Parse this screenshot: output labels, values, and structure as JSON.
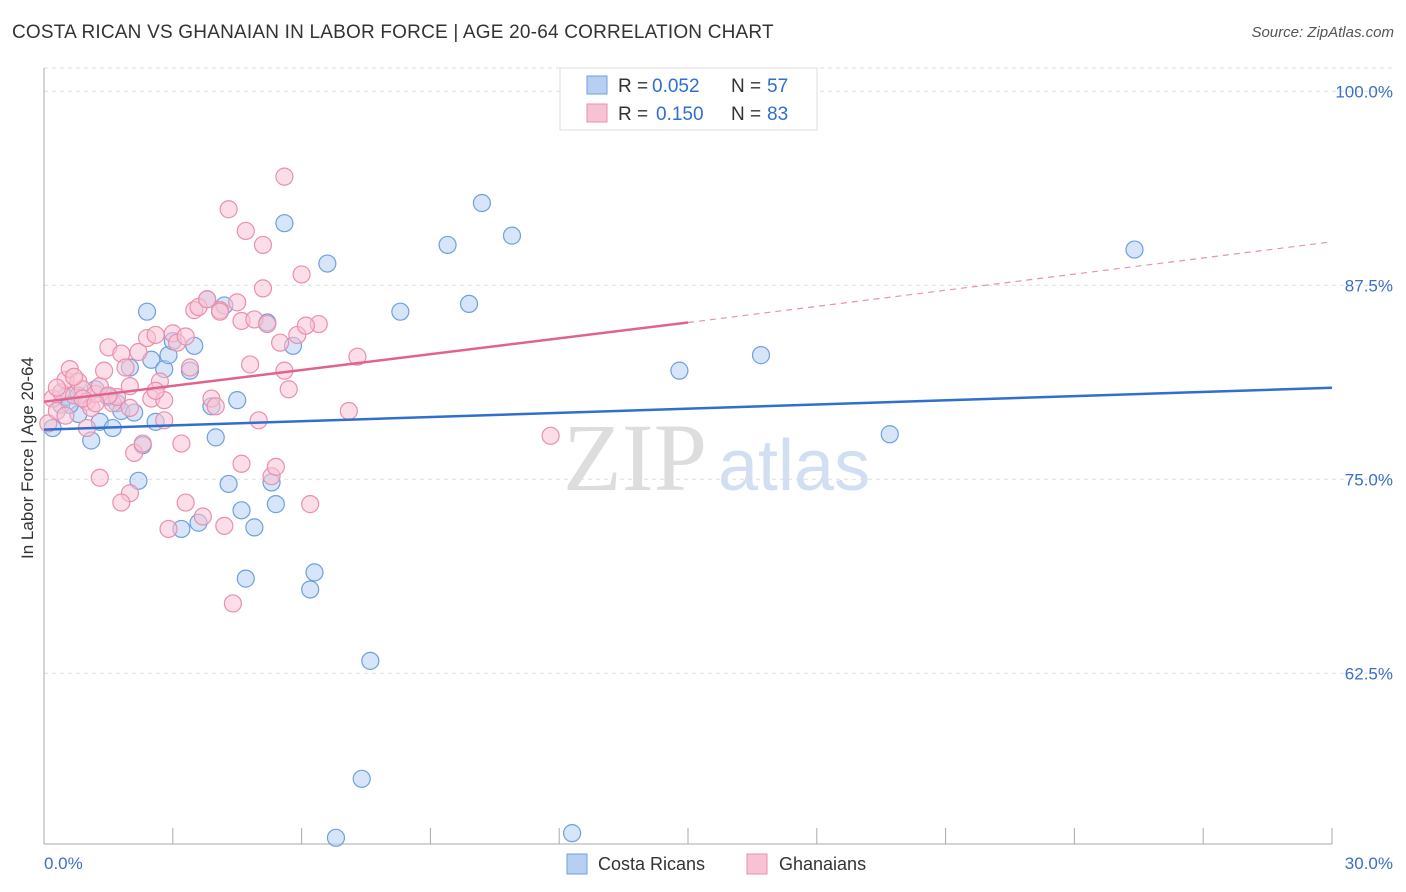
{
  "chart_data": {
    "type": "scatter",
    "title": "COSTA RICAN VS GHANAIAN IN LABOR FORCE | AGE 20-64 CORRELATION CHART",
    "source": "Source: ZipAtlas.com",
    "xlabel": "",
    "ylabel": "In Labor Force | Age 20-64",
    "xlim": [
      0,
      30
    ],
    "ylim": [
      51.5,
      101.5
    ],
    "x_tick_labels": [
      "0.0%",
      "30.0%"
    ],
    "y_ticks": [
      62.5,
      75.0,
      87.5,
      100.0
    ],
    "y_tick_labels": [
      "62.5%",
      "75.0%",
      "87.5%",
      "100.0%"
    ],
    "watermark": {
      "zip": "ZIP",
      "atlas": "atlas"
    },
    "legend_top": [
      {
        "r_label": "R = ",
        "r_value": "0.052",
        "n_label": "N = ",
        "n_value": "57"
      },
      {
        "r_label": "R = ",
        "r_value": "0.150",
        "n_label": "N = ",
        "n_value": "83"
      }
    ],
    "series": [
      {
        "name": "Costa Ricans",
        "color": "#6f9fe0",
        "fill": "#b7cff2",
        "line_color": "#2f6fcf",
        "trend": {
          "x0": 0,
          "y0": 78.2,
          "x1": 30,
          "y1": 80.9
        },
        "points": [
          [
            0.2,
            78.3
          ],
          [
            0.4,
            79.8
          ],
          [
            0.5,
            80.3
          ],
          [
            0.8,
            79.2
          ],
          [
            0.8,
            80.4
          ],
          [
            1.1,
            77.5
          ],
          [
            1.2,
            80.8
          ],
          [
            1.3,
            78.7
          ],
          [
            1.5,
            80.3
          ],
          [
            1.6,
            78.3
          ],
          [
            1.7,
            79.9
          ],
          [
            1.8,
            79.4
          ],
          [
            2.0,
            82.2
          ],
          [
            2.1,
            79.3
          ],
          [
            2.2,
            74.9
          ],
          [
            2.3,
            77.2
          ],
          [
            2.4,
            85.8
          ],
          [
            2.5,
            82.7
          ],
          [
            2.6,
            78.7
          ],
          [
            2.8,
            82.1
          ],
          [
            2.9,
            83.0
          ],
          [
            3.0,
            83.9
          ],
          [
            3.2,
            71.8
          ],
          [
            3.4,
            82.0
          ],
          [
            3.5,
            83.6
          ],
          [
            3.6,
            72.2
          ],
          [
            3.8,
            86.6
          ],
          [
            3.9,
            79.7
          ],
          [
            4.0,
            77.7
          ],
          [
            4.2,
            86.2
          ],
          [
            4.3,
            74.7
          ],
          [
            4.5,
            80.1
          ],
          [
            4.6,
            73.0
          ],
          [
            4.7,
            68.6
          ],
          [
            4.9,
            71.9
          ],
          [
            5.2,
            85.1
          ],
          [
            5.3,
            74.8
          ],
          [
            5.4,
            73.4
          ],
          [
            5.6,
            91.5
          ],
          [
            5.8,
            83.6
          ],
          [
            6.2,
            67.9
          ],
          [
            6.3,
            69.0
          ],
          [
            6.6,
            88.9
          ],
          [
            6.8,
            51.9
          ],
          [
            7.4,
            55.7
          ],
          [
            7.6,
            63.3
          ],
          [
            8.3,
            85.8
          ],
          [
            9.4,
            90.1
          ],
          [
            9.9,
            86.3
          ],
          [
            10.2,
            92.8
          ],
          [
            10.9,
            90.7
          ],
          [
            12.3,
            52.2
          ],
          [
            14.8,
            82.0
          ],
          [
            16.7,
            83.0
          ],
          [
            19.7,
            77.9
          ],
          [
            25.4,
            89.8
          ],
          [
            0.6,
            79.8
          ]
        ]
      },
      {
        "name": "Ghanaians",
        "color": "#ea8fad",
        "fill": "#f7c3d4",
        "line_color": "#e0628e",
        "trend": {
          "x0": 0,
          "y0": 80.0,
          "x1": 15.0,
          "y1": 85.1
        },
        "trend_dashed": {
          "x0": 15.0,
          "y0": 85.1,
          "x1": 30,
          "y1": 90.3
        },
        "points": [
          [
            0.1,
            78.6
          ],
          [
            0.2,
            80.2
          ],
          [
            0.3,
            79.4
          ],
          [
            0.4,
            80.6
          ],
          [
            0.5,
            81.4
          ],
          [
            0.5,
            79.1
          ],
          [
            0.6,
            82.1
          ],
          [
            0.7,
            80.4
          ],
          [
            0.8,
            81.3
          ],
          [
            0.9,
            80.8
          ],
          [
            1.0,
            80.0
          ],
          [
            1.0,
            78.3
          ],
          [
            1.1,
            79.6
          ],
          [
            1.2,
            80.5
          ],
          [
            1.3,
            81.0
          ],
          [
            1.3,
            75.1
          ],
          [
            1.4,
            82.0
          ],
          [
            1.5,
            83.5
          ],
          [
            1.6,
            79.9
          ],
          [
            1.7,
            80.3
          ],
          [
            1.8,
            83.1
          ],
          [
            1.9,
            82.2
          ],
          [
            2.0,
            81.0
          ],
          [
            2.0,
            79.6
          ],
          [
            2.1,
            76.7
          ],
          [
            2.2,
            83.2
          ],
          [
            2.3,
            77.3
          ],
          [
            2.4,
            84.1
          ],
          [
            2.5,
            80.2
          ],
          [
            2.6,
            84.3
          ],
          [
            2.7,
            81.3
          ],
          [
            2.8,
            80.1
          ],
          [
            2.9,
            71.8
          ],
          [
            3.0,
            84.4
          ],
          [
            3.1,
            83.8
          ],
          [
            3.2,
            77.3
          ],
          [
            3.3,
            73.5
          ],
          [
            3.4,
            82.2
          ],
          [
            3.5,
            85.9
          ],
          [
            3.6,
            86.1
          ],
          [
            3.7,
            72.6
          ],
          [
            3.8,
            86.6
          ],
          [
            3.9,
            80.2
          ],
          [
            4.0,
            79.7
          ],
          [
            4.1,
            85.9
          ],
          [
            4.2,
            72.0
          ],
          [
            4.3,
            92.4
          ],
          [
            4.4,
            67.0
          ],
          [
            4.5,
            86.4
          ],
          [
            4.6,
            85.2
          ],
          [
            4.7,
            91.0
          ],
          [
            4.8,
            82.4
          ],
          [
            4.9,
            85.3
          ],
          [
            5.0,
            78.8
          ],
          [
            5.1,
            87.3
          ],
          [
            5.2,
            85.0
          ],
          [
            5.3,
            75.2
          ],
          [
            5.4,
            75.8
          ],
          [
            5.5,
            83.8
          ],
          [
            5.6,
            94.5
          ],
          [
            5.7,
            80.8
          ],
          [
            5.9,
            84.3
          ],
          [
            6.0,
            88.2
          ],
          [
            6.2,
            73.4
          ],
          [
            6.4,
            85.0
          ],
          [
            7.1,
            79.4
          ],
          [
            7.3,
            82.9
          ],
          [
            11.8,
            77.8
          ],
          [
            0.3,
            80.9
          ],
          [
            0.7,
            81.6
          ],
          [
            1.5,
            80.4
          ],
          [
            2.6,
            80.7
          ],
          [
            3.3,
            84.2
          ],
          [
            4.1,
            85.8
          ],
          [
            5.1,
            90.1
          ],
          [
            5.6,
            82.0
          ],
          [
            2.0,
            74.1
          ],
          [
            1.8,
            73.5
          ],
          [
            2.8,
            78.8
          ],
          [
            0.9,
            80.2
          ],
          [
            1.2,
            79.9
          ],
          [
            4.6,
            76.0
          ],
          [
            6.1,
            84.9
          ]
        ]
      }
    ]
  }
}
